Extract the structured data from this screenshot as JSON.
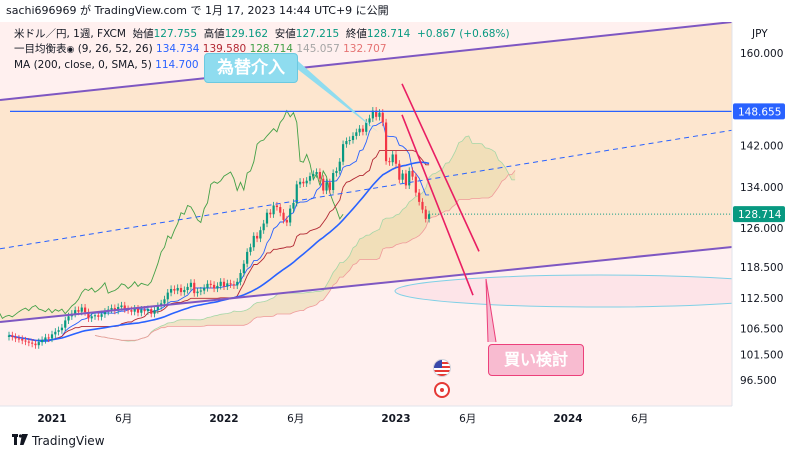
{
  "header": {
    "text": "sachi696969 が TradingView.com で 1月 17, 2023 14:44 UTC+9 に公開"
  },
  "legend": {
    "row1": {
      "symbol": "米ドル／円, 1週, FXCM",
      "open_label": "始値",
      "open": "127.755",
      "high_label": "高値",
      "high": "129.162",
      "low_label": "安値",
      "low": "127.215",
      "close_label": "終値",
      "close": "128.714",
      "change": "+0.867 (+0.68%)"
    },
    "row2": {
      "name": "一目均衡表",
      "params": "(9, 26, 52, 26)",
      "v1": "134.734",
      "v2": "139.580",
      "v3": "128.714",
      "v4": "145.057",
      "v5": "132.707"
    },
    "row3": {
      "name": "MA (200, close, 0, SMA, 5)",
      "value": "114.700"
    }
  },
  "annotations": {
    "intervention": "為替介入",
    "buy": "買い検討"
  },
  "price_axis": {
    "currency": "JPY",
    "current_price": "128.714",
    "resistance_price": "148.655"
  },
  "footer": {
    "brand": "TradingView"
  },
  "colors": {
    "up": "#089981",
    "down": "#f23645",
    "resistance_line": "#2962ff",
    "channel_line": "#7e57c2",
    "trend_line": "#e91e63",
    "background_zone": "#fbe7d0",
    "callout_blue": "#8fdcef",
    "callout_pink": "#f8bbd0"
  },
  "chart_data": {
    "type": "candlestick",
    "title": "米ドル／円, 1週, FXCM",
    "xlabel": "",
    "ylabel": "JPY",
    "ylim": [
      91.5,
      166
    ],
    "y_ticks": [
      96.5,
      101.5,
      106.5,
      112.5,
      118.5,
      126.0,
      134.0,
      142.0,
      160.0
    ],
    "y_tick_labels": [
      "96.500",
      "101.500",
      "106.500",
      "112.500",
      "118.500",
      "126.000",
      "134.000",
      "142.000",
      "160.000"
    ],
    "x_tick_labels": [
      "2021",
      "6月",
      "2022",
      "6月",
      "2023",
      "6月",
      "2024",
      "6月"
    ],
    "x_tick_positions": [
      "2021-01",
      "2021-06",
      "2022-01",
      "2022-06",
      "2023-01",
      "2023-06",
      "2024-01",
      "2024-06"
    ],
    "series": [
      {
        "name": "米ドル／円",
        "date_range": [
          "2020-10",
          "2023-01"
        ],
        "closes": [
          105.2,
          104.9,
          104.6,
          104.5,
          104.2,
          104.0,
          103.8,
          103.6,
          103.3,
          103.9,
          104.3,
          104.8,
          104.6,
          105.4,
          105.9,
          106.2,
          106.7,
          108.1,
          108.9,
          109.4,
          110.1,
          109.8,
          110.6,
          109.7,
          108.5,
          108.9,
          109.1,
          108.8,
          109.3,
          109.8,
          110.2,
          110.5,
          110.0,
          110.7,
          111.0,
          110.3,
          110.1,
          109.8,
          110.4,
          109.6,
          110.2,
          109.9,
          110.3,
          109.4,
          110.1,
          110.9,
          111.4,
          112.2,
          113.5,
          114.2,
          113.9,
          114.4,
          113.6,
          114.0,
          114.6,
          115.4,
          113.4,
          113.7,
          113.9,
          114.4,
          115.2,
          115.0,
          114.3,
          114.8,
          115.6,
          114.7,
          115.3,
          115.1,
          114.9,
          115.6,
          117.3,
          119.1,
          121.4,
          122.3,
          124.5,
          124.0,
          125.6,
          126.9,
          129.0,
          128.7,
          130.4,
          130.1,
          129.0,
          127.6,
          127.1,
          129.8,
          130.9,
          134.5,
          135.0,
          134.7,
          135.2,
          136.1,
          136.5,
          136.9,
          135.6,
          133.3,
          134.9,
          133.4,
          136.7,
          137.1,
          138.9,
          142.3,
          142.9,
          143.1,
          143.9,
          144.6,
          145.3,
          144.7,
          146.5,
          147.3,
          148.8,
          147.6,
          148.4,
          146.5,
          139.0,
          138.8,
          140.3,
          138.5,
          135.4,
          136.6,
          134.3,
          137.1,
          136.0,
          132.9,
          131.1,
          129.6,
          127.8,
          128.7
        ]
      },
      {
        "name": "MA (200, close, 0, SMA, 5)",
        "value": 114.7
      }
    ],
    "horizontal_levels": [
      148.655
    ],
    "callouts": [
      "為替介入",
      "買い検討"
    ]
  }
}
